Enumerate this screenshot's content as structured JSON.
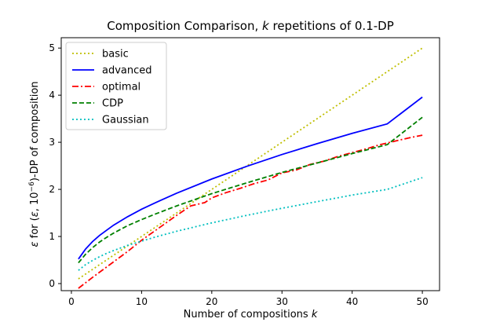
{
  "chart_data": {
    "type": "line",
    "title_parts": [
      "Composition Comparison, ",
      "k",
      " repetitions of 0.1-DP"
    ],
    "xlabel_parts": [
      "Number of compositions ",
      "k"
    ],
    "ylabel_parts": [
      "ε",
      " for (",
      "ε",
      ", 10",
      "−6",
      ")-DP of composition"
    ],
    "xlim": [
      -1.45,
      52.45
    ],
    "ylim": [
      -0.15,
      5.22
    ],
    "xticks": [
      0,
      10,
      20,
      30,
      40,
      50
    ],
    "yticks": [
      0,
      1,
      2,
      3,
      4,
      5
    ],
    "grid": false,
    "legend_position": "top-left",
    "series": [
      {
        "name": "basic",
        "color": "#bfbf00",
        "dash": "2,3",
        "x": [
          1,
          5,
          10,
          15,
          20,
          25,
          30,
          35,
          40,
          45,
          50
        ],
        "y": [
          0.1,
          0.5,
          1.0,
          1.5,
          2.0,
          2.5,
          3.0,
          3.5,
          4.0,
          4.5,
          5.0
        ]
      },
      {
        "name": "advanced",
        "color": "#0000ff",
        "dash": "",
        "x": [
          1,
          2,
          3,
          4,
          5,
          6,
          8,
          10,
          12,
          15,
          20,
          25,
          30,
          35,
          40,
          45,
          50
        ],
        "y": [
          0.52,
          0.73,
          0.89,
          1.02,
          1.13,
          1.24,
          1.42,
          1.58,
          1.72,
          1.92,
          2.22,
          2.49,
          2.74,
          2.97,
          3.19,
          3.39,
          3.96
        ]
      },
      {
        "name": "optimal",
        "color": "#ff0000",
        "dash": "8,3,2,3",
        "x": [
          1,
          3,
          5,
          8,
          10,
          12,
          15,
          17,
          19,
          20,
          22,
          24,
          26,
          28,
          30,
          32,
          34,
          36,
          38,
          40,
          42,
          44,
          46,
          48,
          50
        ],
        "y": [
          -0.1,
          0.13,
          0.35,
          0.68,
          0.92,
          1.13,
          1.45,
          1.65,
          1.72,
          1.82,
          1.93,
          2.02,
          2.12,
          2.2,
          2.35,
          2.41,
          2.53,
          2.6,
          2.7,
          2.78,
          2.86,
          2.95,
          3.02,
          3.09,
          3.15
        ]
      },
      {
        "name": "CDP",
        "color": "#008000",
        "dash": "6,3",
        "x": [
          1,
          2,
          3,
          4,
          5,
          6,
          8,
          10,
          12,
          15,
          20,
          25,
          30,
          35,
          40,
          45,
          50
        ],
        "y": [
          0.44,
          0.62,
          0.76,
          0.88,
          0.98,
          1.07,
          1.23,
          1.36,
          1.48,
          1.65,
          1.91,
          2.14,
          2.36,
          2.56,
          2.76,
          2.95,
          3.53
        ]
      },
      {
        "name": "Gaussian",
        "color": "#00bfbf",
        "dash": "2,3",
        "x": [
          1,
          2,
          3,
          4,
          5,
          6,
          8,
          10,
          12,
          15,
          20,
          25,
          30,
          35,
          40,
          45,
          50
        ],
        "y": [
          0.28,
          0.4,
          0.49,
          0.57,
          0.64,
          0.7,
          0.81,
          0.9,
          0.99,
          1.11,
          1.29,
          1.45,
          1.6,
          1.74,
          1.88,
          2.0,
          2.25
        ]
      }
    ]
  }
}
